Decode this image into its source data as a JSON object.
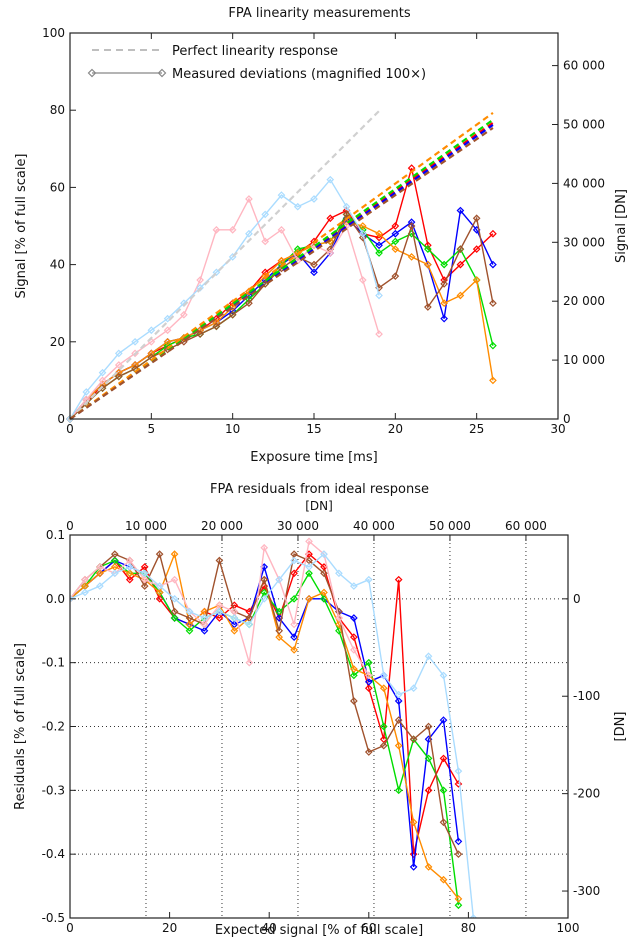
{
  "chart_data": [
    {
      "type": "line",
      "title": "FPA linearity measurements",
      "xlabel": "Exposure time [ms]",
      "ylabel": "Signal [% of full scale]",
      "ylabel_right": "Signal [DN]",
      "xlim": [
        0,
        30
      ],
      "ylim": [
        0,
        100
      ],
      "ylim_right": [
        0,
        65535
      ],
      "x_ticks": [
        "0",
        "5",
        "10",
        "15",
        "20",
        "25",
        "30"
      ],
      "y_ticks": [
        "0",
        "20",
        "40",
        "60",
        "80",
        "100"
      ],
      "y_right_ticks": [
        "0",
        "10 000",
        "20 000",
        "30 000",
        "40 000",
        "50 000",
        "60 000"
      ],
      "legend": {
        "position": "top-left",
        "entries": [
          {
            "label": "Perfect linearity response",
            "style": "dashed"
          },
          {
            "label": "Measured deviations (magnified 100×)",
            "style": "line-diamond"
          }
        ]
      },
      "grid": false,
      "series": [
        {
          "color": "#ff0000",
          "x": [
            0,
            1,
            2,
            3,
            4,
            5,
            6,
            7,
            8,
            9,
            10,
            11,
            12,
            13,
            14,
            15,
            16,
            17,
            18,
            19,
            20,
            21,
            22,
            23,
            24,
            25,
            26
          ],
          "y": [
            0,
            4,
            9,
            12,
            14,
            17,
            19,
            21,
            23,
            26,
            30,
            33,
            38,
            41,
            43,
            46,
            52,
            54,
            48,
            47,
            50,
            65,
            45,
            36,
            40,
            44,
            48
          ]
        },
        {
          "color": "#0000ff",
          "x": [
            0,
            1,
            2,
            3,
            4,
            5,
            6,
            7,
            8,
            9,
            10,
            11,
            12,
            13,
            14,
            15,
            16,
            17,
            18,
            19,
            20,
            21,
            22,
            23,
            24,
            25,
            26
          ],
          "y": [
            0,
            5,
            9,
            12,
            14,
            17,
            20,
            21,
            23,
            25,
            28,
            32,
            36,
            40,
            43,
            38,
            43,
            52,
            48,
            45,
            48,
            51,
            40,
            26,
            54,
            49,
            40
          ]
        },
        {
          "color": "#00dd00",
          "x": [
            0,
            1,
            2,
            3,
            4,
            5,
            6,
            7,
            8,
            9,
            10,
            11,
            12,
            13,
            14,
            15,
            16,
            17,
            18,
            19,
            20,
            21,
            22,
            23,
            24,
            25,
            26
          ],
          "y": [
            0,
            4,
            8,
            11,
            13,
            16,
            19,
            21,
            22,
            24,
            27,
            31,
            35,
            40,
            44,
            45,
            46,
            53,
            49,
            43,
            46,
            48,
            44,
            40,
            44,
            36,
            19
          ]
        },
        {
          "color": "#ff8c00",
          "x": [
            0,
            1,
            2,
            3,
            4,
            5,
            6,
            7,
            8,
            9,
            10,
            11,
            12,
            13,
            14,
            15,
            16,
            17,
            18,
            19,
            20,
            21,
            22,
            23,
            24,
            25,
            26
          ],
          "y": [
            0,
            5,
            9,
            12,
            14,
            17,
            20,
            21,
            23,
            25,
            29,
            33,
            37,
            41,
            43,
            45,
            46,
            51,
            50,
            48,
            44,
            42,
            40,
            30,
            32,
            36,
            10
          ]
        },
        {
          "color": "#a0522d",
          "x": [
            0,
            1,
            2,
            3,
            4,
            5,
            6,
            7,
            8,
            9,
            10,
            11,
            12,
            13,
            14,
            15,
            16,
            17,
            18,
            19,
            20,
            21,
            22,
            23,
            24,
            25,
            26
          ],
          "y": [
            0,
            4,
            8,
            11,
            13,
            16,
            18,
            20,
            22,
            24,
            27,
            30,
            35,
            39,
            42,
            40,
            44,
            53,
            47,
            34,
            37,
            50,
            29,
            35,
            44,
            52,
            30
          ]
        },
        {
          "color": "#ffb6c1",
          "x": [
            0,
            1,
            2,
            3,
            4,
            5,
            6,
            7,
            8,
            9,
            10,
            11,
            12,
            13,
            14,
            15,
            16,
            17,
            18,
            19
          ],
          "y": [
            0,
            5,
            10,
            14,
            17,
            20,
            23,
            27,
            36,
            49,
            49,
            57,
            46,
            49,
            41,
            45,
            43,
            50,
            36,
            22
          ]
        },
        {
          "color": "#aadcff",
          "x": [
            0,
            1,
            2,
            3,
            4,
            5,
            6,
            7,
            8,
            9,
            10,
            11,
            12,
            13,
            14,
            15,
            16,
            17,
            18,
            19
          ],
          "y": [
            0,
            7,
            12,
            17,
            20,
            23,
            26,
            30,
            34,
            38,
            42,
            48,
            53,
            58,
            55,
            57,
            62,
            55,
            48,
            32
          ]
        }
      ],
      "ideal_lines": [
        {
          "color": "#d0d0d0",
          "slope": 4.2,
          "x_end": 19
        },
        {
          "color": "#ff0000",
          "slope": 2.95,
          "x_end": 26
        },
        {
          "color": "#0000ff",
          "slope": 2.93,
          "x_end": 26
        },
        {
          "color": "#00dd00",
          "slope": 2.98,
          "x_end": 26
        },
        {
          "color": "#ff8c00",
          "slope": 3.05,
          "x_end": 26
        },
        {
          "color": "#a0522d",
          "slope": 2.9,
          "x_end": 26
        }
      ]
    },
    {
      "type": "line",
      "title": "FPA residuals from ideal response",
      "xlabel": "Expected signal [% of full scale]",
      "xlabel_top": "[DN]",
      "ylabel": "Residuals [% of full scale]",
      "ylabel_right": "[DN]",
      "xlim": [
        0,
        100
      ],
      "ylim": [
        -0.5,
        0.1
      ],
      "ylim_right": [
        -327.7,
        65.5
      ],
      "x_ticks": [
        "0",
        "20",
        "40",
        "60",
        "80",
        "100"
      ],
      "x_top_ticks": [
        "0",
        "10 000",
        "20 000",
        "30 000",
        "40 000",
        "50 000",
        "60 000"
      ],
      "y_ticks": [
        "0.1",
        "0.0",
        "-0.1",
        "-0.2",
        "-0.3",
        "-0.4",
        "-0.5"
      ],
      "y_right_ticks": [
        "0",
        "-100",
        "-200",
        "-300"
      ],
      "grid": true,
      "series": [
        {
          "color": "#ff0000",
          "x": [
            0,
            3,
            6,
            9,
            12,
            15,
            18,
            21,
            24,
            27,
            30,
            33,
            36,
            39,
            42,
            45,
            48,
            51,
            54,
            57,
            60,
            63,
            66,
            69,
            72,
            75,
            78
          ],
          "y": [
            0.0,
            0.02,
            0.04,
            0.06,
            0.03,
            0.05,
            0.0,
            -0.03,
            -0.04,
            -0.02,
            -0.03,
            -0.01,
            -0.02,
            0.02,
            -0.03,
            0.04,
            0.07,
            0.05,
            -0.03,
            -0.06,
            -0.14,
            -0.22,
            0.03,
            -0.4,
            -0.3,
            -0.25,
            -0.29
          ]
        },
        {
          "color": "#0000ff",
          "x": [
            0,
            3,
            6,
            9,
            12,
            15,
            18,
            21,
            24,
            27,
            30,
            33,
            36,
            39,
            42,
            45,
            48,
            51,
            54,
            57,
            60,
            63,
            66,
            69,
            72,
            75,
            78
          ],
          "y": [
            0.0,
            0.02,
            0.04,
            0.06,
            0.05,
            0.04,
            0.01,
            -0.03,
            -0.04,
            -0.05,
            -0.02,
            -0.04,
            -0.03,
            0.05,
            -0.03,
            -0.06,
            0.0,
            0.0,
            -0.02,
            -0.03,
            -0.13,
            -0.12,
            -0.16,
            -0.42,
            -0.22,
            -0.19,
            -0.38
          ]
        },
        {
          "color": "#00dd00",
          "x": [
            0,
            3,
            6,
            9,
            12,
            15,
            18,
            21,
            24,
            27,
            30,
            33,
            36,
            39,
            42,
            45,
            48,
            51,
            54,
            57,
            60,
            63,
            66,
            69,
            72,
            75,
            78
          ],
          "y": [
            0.0,
            0.02,
            0.05,
            0.06,
            0.04,
            0.04,
            0.01,
            -0.03,
            -0.05,
            -0.03,
            -0.02,
            -0.03,
            -0.04,
            0.01,
            -0.02,
            0.0,
            0.04,
            0.0,
            -0.05,
            -0.12,
            -0.1,
            -0.2,
            -0.3,
            -0.22,
            -0.25,
            -0.3,
            -0.48
          ]
        },
        {
          "color": "#ff8c00",
          "x": [
            0,
            3,
            6,
            9,
            12,
            15,
            18,
            21,
            24,
            27,
            30,
            33,
            36,
            39,
            42,
            45,
            48,
            51,
            54,
            57,
            60,
            63,
            66,
            69,
            72,
            75,
            78
          ],
          "y": [
            0.0,
            0.02,
            0.04,
            0.05,
            0.04,
            0.03,
            0.01,
            0.07,
            -0.04,
            -0.02,
            -0.01,
            -0.05,
            -0.03,
            0.03,
            -0.06,
            -0.08,
            0.0,
            0.01,
            -0.04,
            -0.11,
            -0.12,
            -0.14,
            -0.23,
            -0.35,
            -0.42,
            -0.44,
            -0.47
          ]
        },
        {
          "color": "#a0522d",
          "x": [
            0,
            3,
            6,
            9,
            12,
            15,
            18,
            21,
            24,
            27,
            30,
            33,
            36,
            39,
            42,
            45,
            48,
            51,
            54,
            57,
            60,
            63,
            66,
            69,
            72,
            75,
            78
          ],
          "y": [
            0.0,
            0.03,
            0.05,
            0.07,
            0.06,
            0.02,
            0.07,
            -0.02,
            -0.03,
            -0.04,
            0.06,
            -0.02,
            -0.03,
            0.03,
            -0.05,
            0.07,
            0.06,
            0.04,
            -0.02,
            -0.16,
            -0.24,
            -0.23,
            -0.19,
            -0.22,
            -0.2,
            -0.35,
            -0.4
          ]
        },
        {
          "color": "#ffb6c1",
          "x": [
            0,
            3,
            6,
            9,
            12,
            15,
            18,
            21,
            24,
            27,
            30,
            33,
            36,
            39,
            42,
            45,
            48,
            51,
            54,
            57,
            60
          ],
          "y": [
            0.0,
            0.03,
            0.05,
            0.04,
            0.06,
            0.03,
            0.02,
            0.03,
            -0.02,
            -0.04,
            -0.01,
            -0.02,
            -0.1,
            0.08,
            0.03,
            -0.04,
            0.09,
            0.07,
            -0.03,
            -0.08,
            -0.12
          ]
        },
        {
          "color": "#aadcff",
          "x": [
            0,
            3,
            6,
            9,
            12,
            15,
            18,
            21,
            24,
            27,
            30,
            33,
            36,
            39,
            42,
            45,
            48,
            51,
            54,
            57,
            60,
            63,
            66,
            69,
            72,
            75,
            78,
            81
          ],
          "y": [
            0.0,
            0.01,
            0.02,
            0.04,
            0.05,
            0.04,
            0.02,
            0.0,
            -0.02,
            -0.03,
            -0.02,
            -0.03,
            -0.04,
            0.0,
            0.03,
            0.06,
            0.05,
            0.07,
            0.04,
            0.02,
            0.03,
            -0.12,
            -0.15,
            -0.14,
            -0.09,
            -0.12,
            -0.27,
            -0.5
          ]
        }
      ]
    }
  ]
}
